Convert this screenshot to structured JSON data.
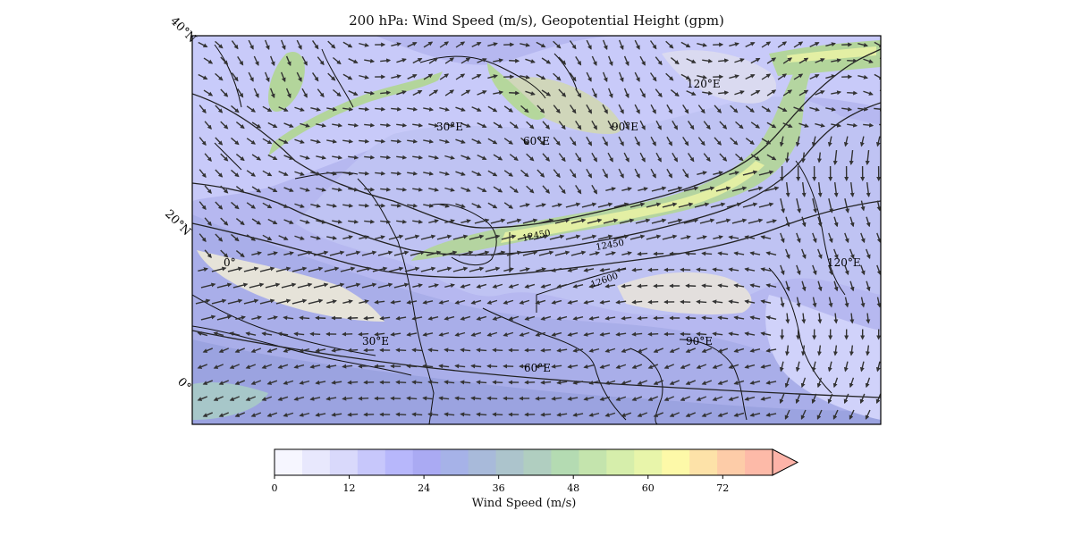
{
  "map": {
    "title": "200 hPa: Wind Speed (m/s), Geopotential Height (gpm)",
    "lat_labels": [
      "40°N",
      "20°N",
      "0°"
    ],
    "inner_lon_labels": [
      "0°",
      "30°E",
      "30°E",
      "60°E",
      "60°E",
      "90°E",
      "90°E",
      "120°E",
      "120°E"
    ],
    "contour_labels": [
      "12450",
      "12450",
      "12600"
    ],
    "land_colors": {
      "low_speed": "#c9ccff",
      "mid_speed": "#9aa7e8",
      "jet": "#b7d89b",
      "jet_core": "#e4f0a6"
    }
  },
  "colorbar": {
    "label": "Wind Speed (m/s)",
    "ticks": [
      "0",
      "12",
      "24",
      "36",
      "48",
      "60",
      "72"
    ],
    "tick_values": [
      0,
      12,
      24,
      36,
      48,
      60,
      72
    ],
    "max": 80,
    "extend": "max",
    "colors": [
      "#f6f6ff",
      "#e8e8fd",
      "#d9d9fb",
      "#c7c7fb",
      "#b7b7fb",
      "#aaaaf3",
      "#a6b2e8",
      "#a8bada",
      "#acc4cc",
      "#b0cec0",
      "#b4dbb2",
      "#c4e4ad",
      "#d6eeab",
      "#e8f5aa",
      "#fdf9a8",
      "#fde2a8",
      "#fdcca8",
      "#fdbaa8"
    ],
    "extend_color": "#fdb3a8"
  }
}
